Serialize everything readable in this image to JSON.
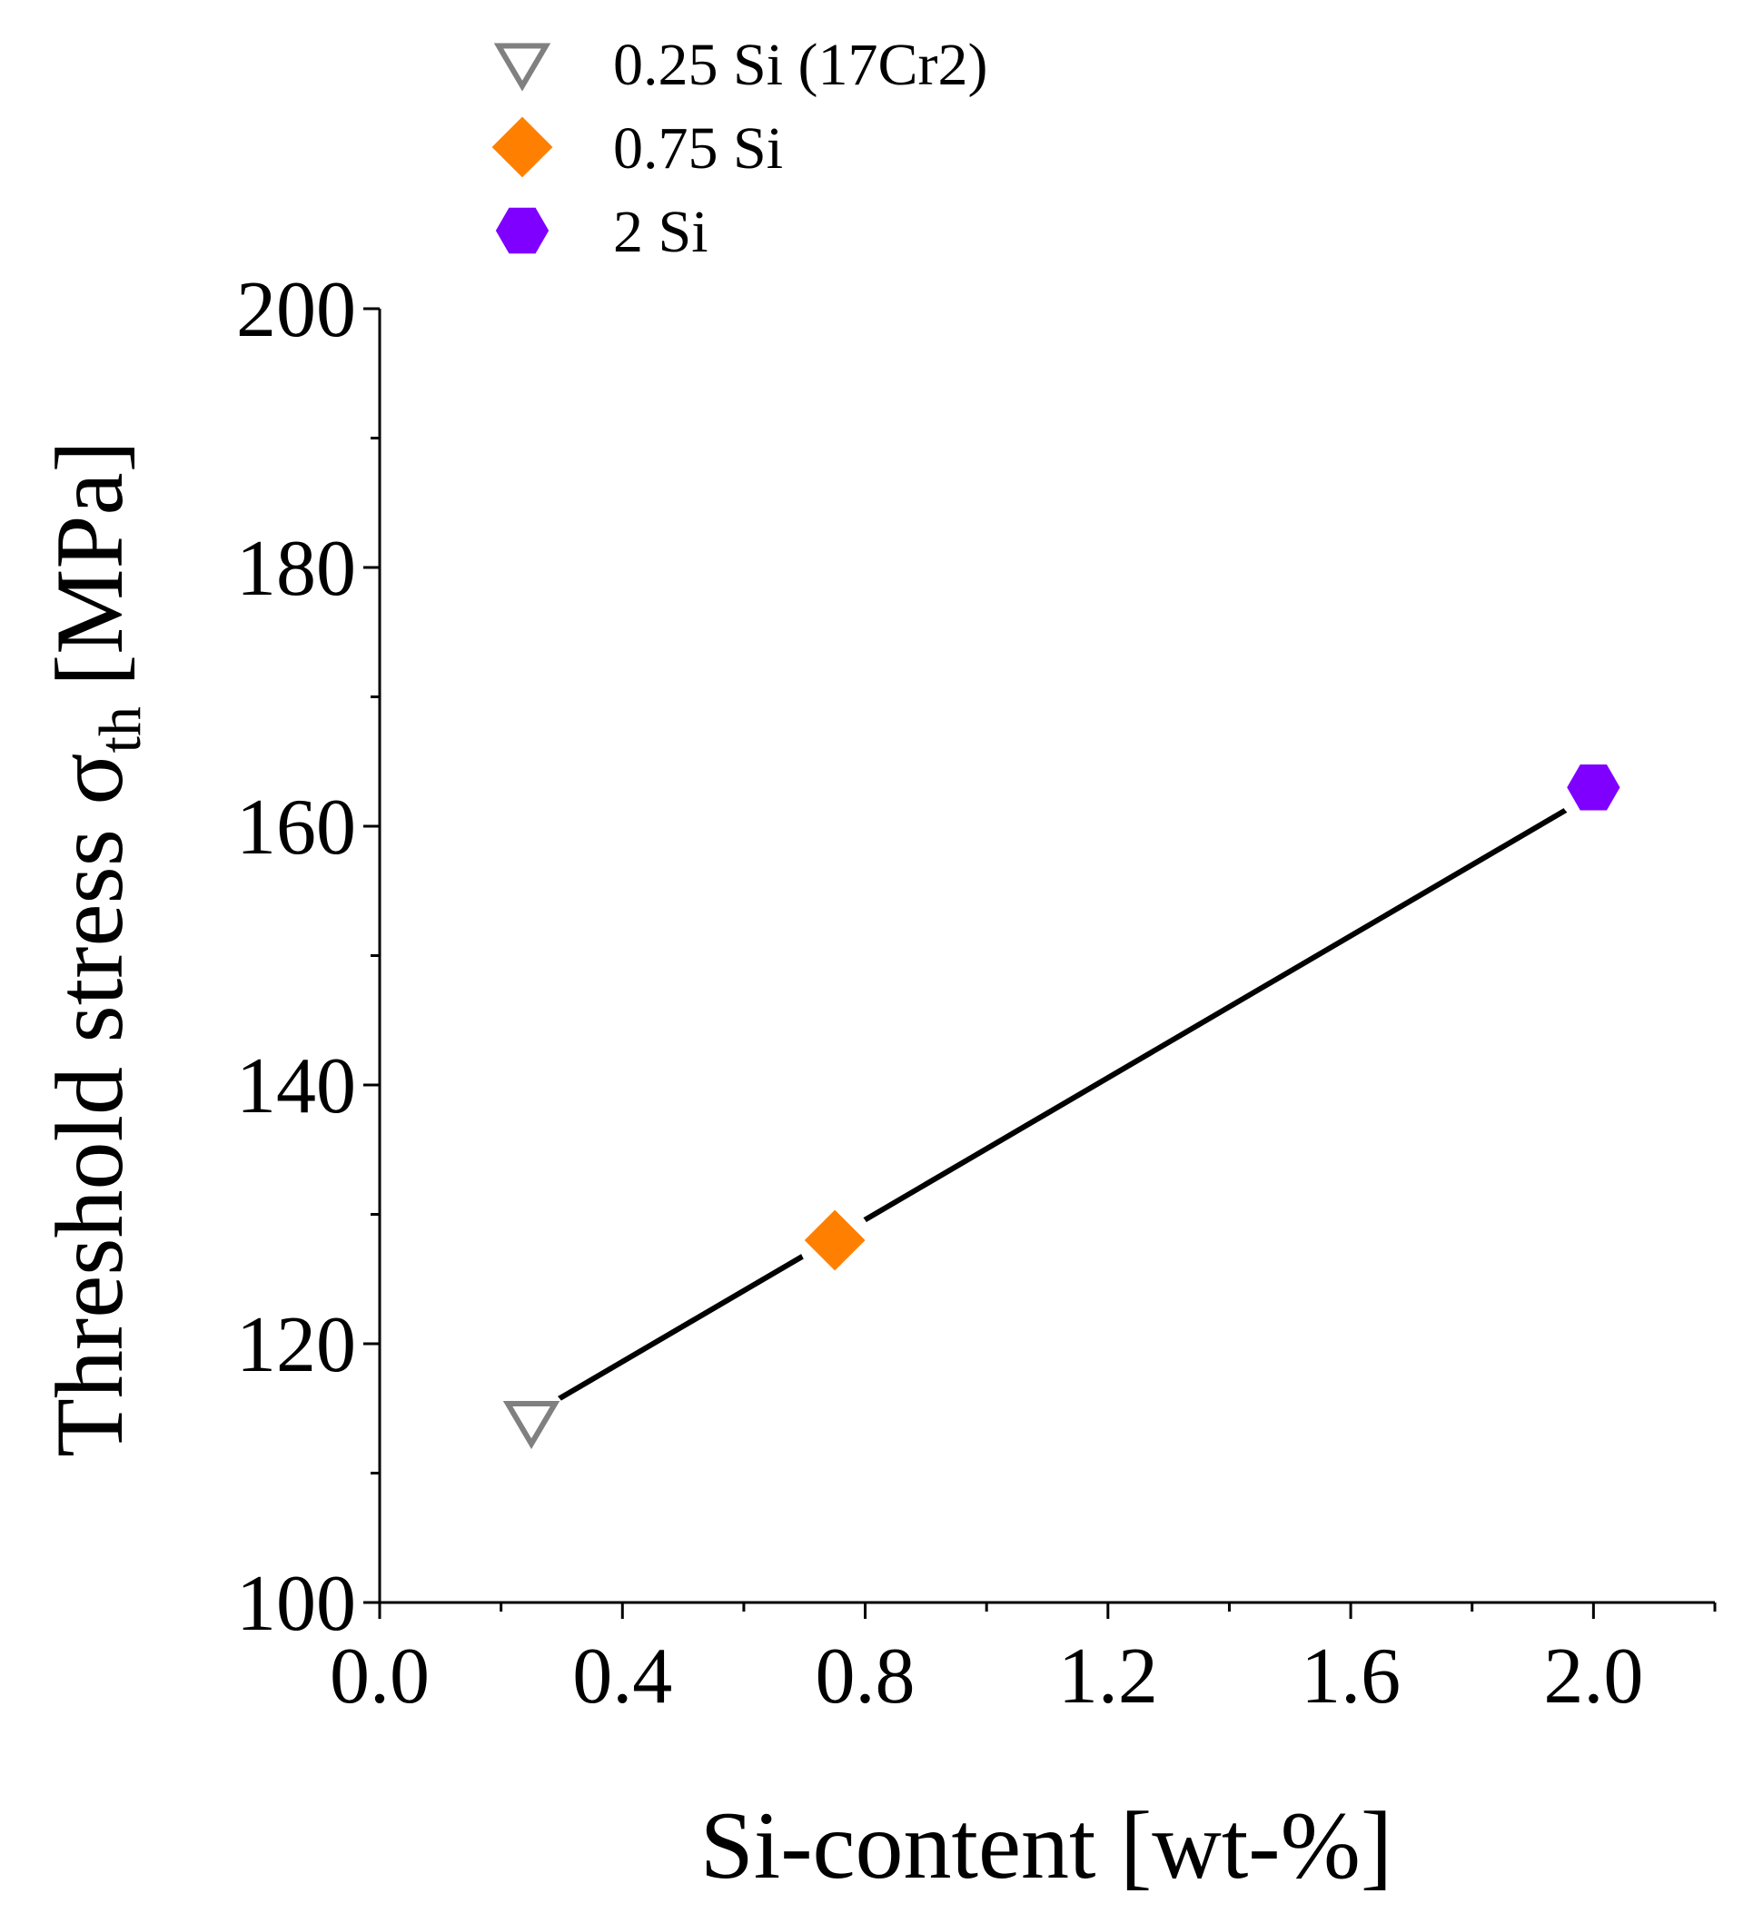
{
  "chart_data": {
    "type": "scatter",
    "title": "",
    "xlabel": "Si-content [wt-%]",
    "ylabel_main": "Threshold stress σ",
    "ylabel_sub": "th",
    "ylabel_unit": "[MPa]",
    "xlim": [
      0.0,
      2.2
    ],
    "ylim": [
      100,
      200
    ],
    "x_ticks": [
      0.0,
      0.4,
      0.8,
      1.2,
      1.6,
      2.0
    ],
    "x_tick_labels": [
      "0.0",
      "0.4",
      "0.8",
      "1.2",
      "1.6",
      "2.0"
    ],
    "x_minor_step": 0.2,
    "y_ticks": [
      100,
      120,
      140,
      160,
      180,
      200
    ],
    "y_tick_labels": [
      "100",
      "120",
      "140",
      "160",
      "180",
      "200"
    ],
    "y_minor_step": 10,
    "grid": false,
    "legend_position": "top-left (above plot)",
    "series": [
      {
        "name": "0.25 Si (17Cr2)",
        "marker": "triangle-down-open",
        "color": "#808080",
        "x": [
          0.25
        ],
        "y": [
          114
        ]
      },
      {
        "name": "0.75 Si",
        "marker": "diamond",
        "color": "#FF8000",
        "x": [
          0.75
        ],
        "y": [
          128
        ]
      },
      {
        "name": "2 Si",
        "marker": "hexagon",
        "color": "#8000FF",
        "x": [
          2.0
        ],
        "y": [
          163
        ]
      }
    ],
    "fit_line": {
      "color": "#000000",
      "x": [
        0.25,
        2.0
      ],
      "y": [
        114.5,
        162.5
      ]
    }
  }
}
